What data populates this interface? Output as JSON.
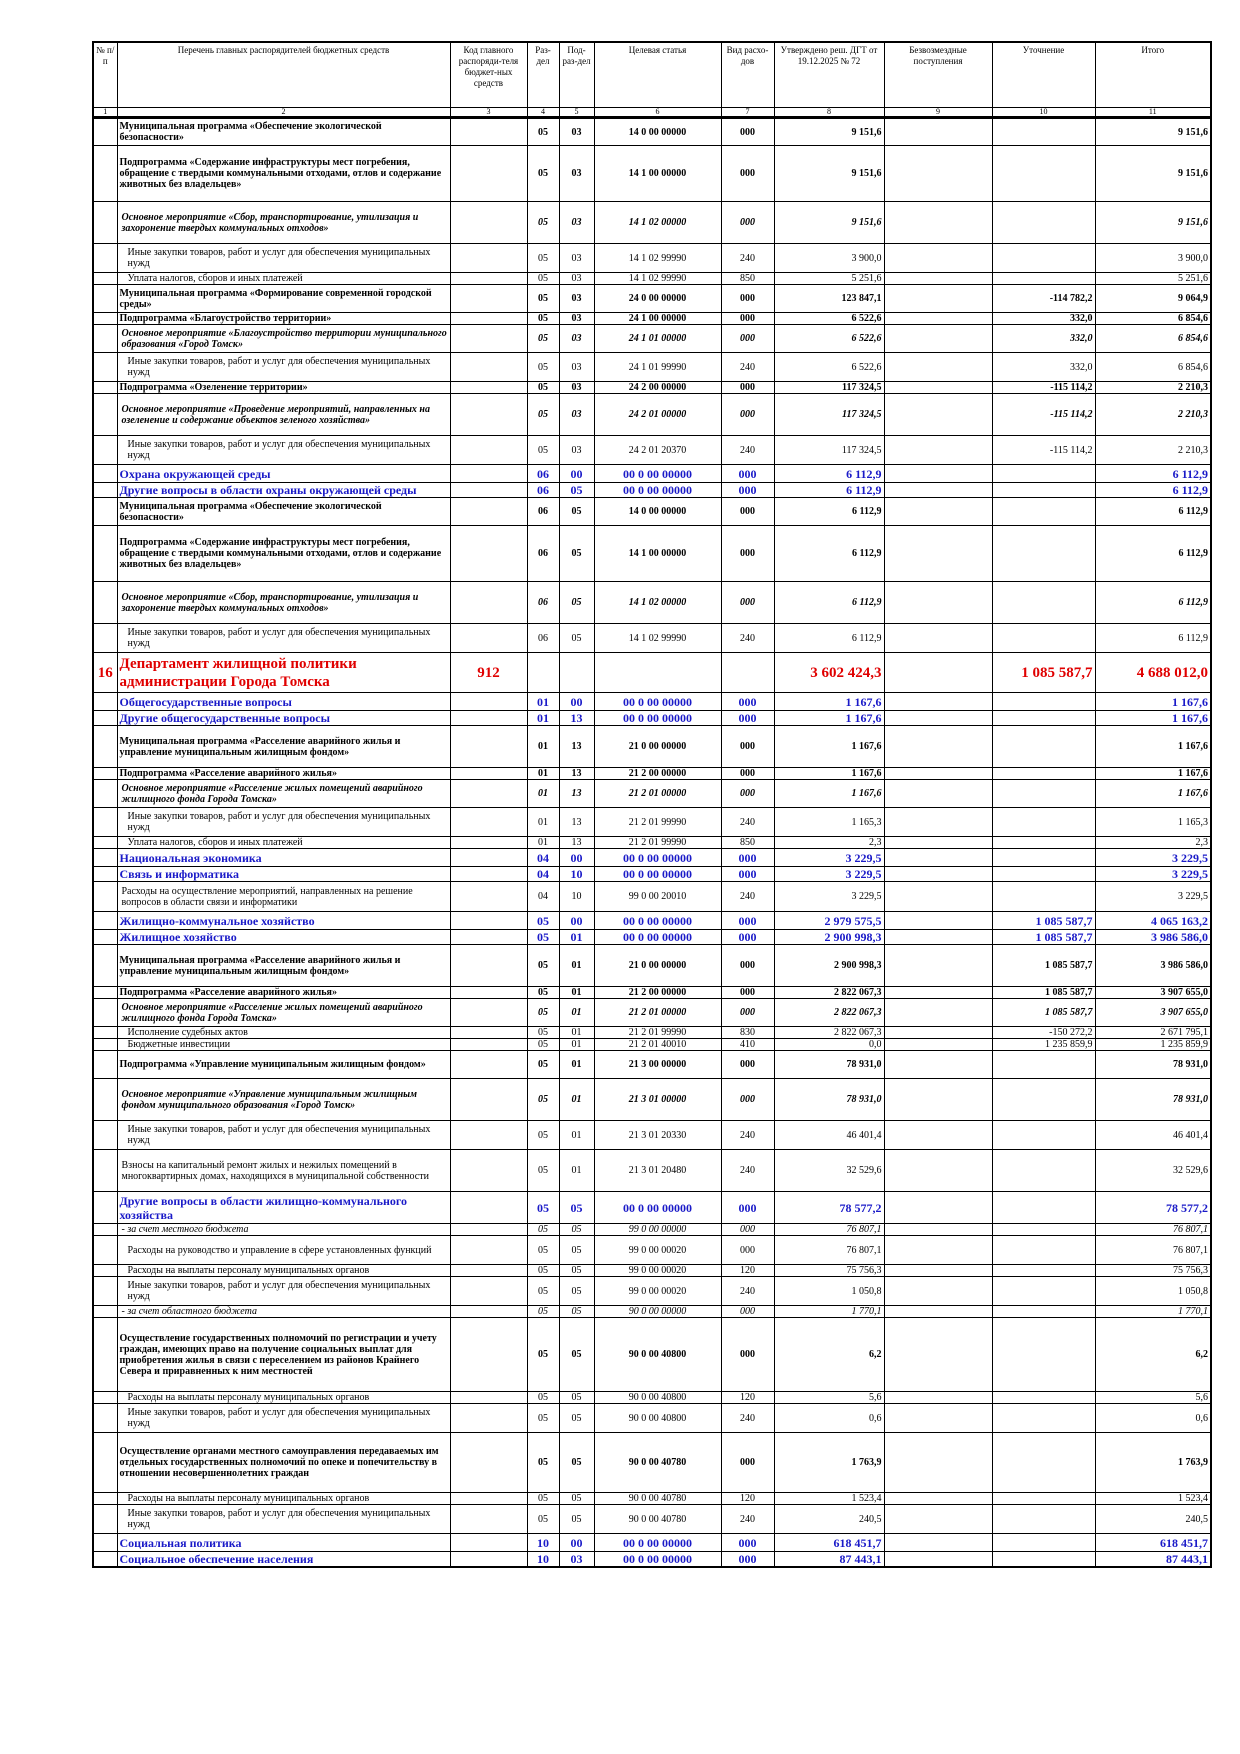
{
  "headers": [
    "№ п/п",
    "Перечень главных распорядителей бюджетных средств",
    "Код главного распоряди-теля бюджет-ных средств",
    "Раз-дел",
    "Под-раз-дел",
    "Целевая статья",
    "Вид расхо-дов",
    "Утверждено реш. ДГТ от 19.12.2025 № 72",
    "Безвозмездные поступления",
    "Уточнение",
    "Итого"
  ],
  "col_numbers": [
    "1",
    "2",
    "3",
    "4",
    "5",
    "6",
    "7",
    "8",
    "9",
    "10",
    "11"
  ],
  "rows": [
    {
      "style": "bold",
      "h": 28,
      "num": "",
      "name": "Муниципальная программа «Обеспечение экологической безопасности»",
      "code": "",
      "razdel": "05",
      "podrazdel": "03",
      "cs": "14 0 00 00000",
      "vr": "000",
      "approved": "9 151,6",
      "free": "",
      "refine": "",
      "total": "9 151,6"
    },
    {
      "style": "bold",
      "h": 56,
      "num": "",
      "name": "Подпрограмма «Содержание инфраструктуры мест погребения, обращение с твердыми коммунальными отходами, отлов и содержание животных без владельцев»",
      "code": "",
      "razdel": "05",
      "podrazdel": "03",
      "cs": "14 1 00 00000",
      "vr": "000",
      "approved": "9 151,6",
      "free": "",
      "refine": "",
      "total": "9 151,6"
    },
    {
      "style": "bi",
      "h": 42,
      "num": "",
      "name": "Основное мероприятие «Сбор, транспортирование, утилизация и захоронение твердых коммунальных отходов»",
      "code": "",
      "razdel": "05",
      "podrazdel": "03",
      "cs": "14 1 02 00000",
      "vr": "000",
      "approved": "9 151,6",
      "free": "",
      "refine": "",
      "total": "9 151,6"
    },
    {
      "style": "ind",
      "h": 29,
      "num": "",
      "name": "Иные закупки товаров, работ и услуг для обеспечения муниципальных нужд",
      "code": "",
      "razdel": "05",
      "podrazdel": "03",
      "cs": "14 1 02 99990",
      "vr": "240",
      "approved": "3 900,0",
      "free": "",
      "refine": "",
      "total": "3 900,0"
    },
    {
      "style": "ind",
      "h": 12,
      "num": "",
      "name": "Уплата налогов, сборов и иных платежей",
      "code": "",
      "razdel": "05",
      "podrazdel": "03",
      "cs": "14 1 02 99990",
      "vr": "850",
      "approved": "5 251,6",
      "free": "",
      "refine": "",
      "total": "5 251,6"
    },
    {
      "style": "bold",
      "h": 28,
      "num": "",
      "name": "Муниципальная программа «Формирование современной городской среды»",
      "code": "",
      "razdel": "05",
      "podrazdel": "03",
      "cs": "24 0 00 00000",
      "vr": "000",
      "approved": "123 847,1",
      "free": "",
      "refine": "-114 782,2",
      "total": "9 064,9"
    },
    {
      "style": "bold",
      "h": 12,
      "num": "",
      "name": "Подпрограмма «Благоустройство территории»",
      "code": "",
      "razdel": "05",
      "podrazdel": "03",
      "cs": "24 1 00 00000",
      "vr": "000",
      "approved": "6 522,6",
      "free": "",
      "refine": "332,0",
      "total": "6 854,6"
    },
    {
      "style": "bi",
      "h": 28,
      "num": "",
      "name": "Основное мероприятие «Благоустройство территории муниципального образования «Город Томск»",
      "code": "",
      "razdel": "05",
      "podrazdel": "03",
      "cs": "24 1 01 00000",
      "vr": "000",
      "approved": "6 522,6",
      "free": "",
      "refine": "332,0",
      "total": "6 854,6"
    },
    {
      "style": "ind",
      "h": 29,
      "num": "",
      "name": "Иные закупки товаров, работ и услуг для обеспечения муниципальных нужд",
      "code": "",
      "razdel": "05",
      "podrazdel": "03",
      "cs": "24 1 01 99990",
      "vr": "240",
      "approved": "6 522,6",
      "free": "",
      "refine": "332,0",
      "total": "6 854,6"
    },
    {
      "style": "bold",
      "h": 12,
      "num": "",
      "name": "Подпрограмма «Озеленение территории»",
      "code": "",
      "razdel": "05",
      "podrazdel": "03",
      "cs": "24 2 00 00000",
      "vr": "000",
      "approved": "117 324,5",
      "free": "",
      "refine": "-115 114,2",
      "total": "2 210,3"
    },
    {
      "style": "bi",
      "h": 42,
      "num": "",
      "name": "Основное мероприятие «Проведение мероприятий, направленных на озеленение и содержание объектов зеленого хозяйства»",
      "code": "",
      "razdel": "05",
      "podrazdel": "03",
      "cs": "24 2 01 00000",
      "vr": "000",
      "approved": "117 324,5",
      "free": "",
      "refine": "-115 114,2",
      "total": "2 210,3"
    },
    {
      "style": "ind",
      "h": 29,
      "num": "",
      "name": "Иные закупки товаров, работ и услуг для обеспечения муниципальных нужд",
      "code": "",
      "razdel": "05",
      "podrazdel": "03",
      "cs": "24 2 01 20370",
      "vr": "240",
      "approved": "117 324,5",
      "free": "",
      "refine": "-115 114,2",
      "total": "2 210,3"
    },
    {
      "style": "blue",
      "h": 18,
      "num": "",
      "name": "Охрана окружающей среды",
      "code": "",
      "razdel": "06",
      "podrazdel": "00",
      "cs": "00 0 00 00000",
      "vr": "000",
      "approved": "6 112,9",
      "free": "",
      "refine": "",
      "total": "6 112,9"
    },
    {
      "style": "blue",
      "h": 14,
      "num": "",
      "name": "Другие вопросы в области охраны окружающей среды",
      "code": "",
      "razdel": "06",
      "podrazdel": "05",
      "cs": "00 0 00 00000",
      "vr": "000",
      "approved": "6 112,9",
      "free": "",
      "refine": "",
      "total": "6 112,9"
    },
    {
      "style": "bold",
      "h": 28,
      "num": "",
      "name": "Муниципальная программа «Обеспечение экологической безопасности»",
      "code": "",
      "razdel": "06",
      "podrazdel": "05",
      "cs": "14 0 00 00000",
      "vr": "000",
      "approved": "6 112,9",
      "free": "",
      "refine": "",
      "total": "6 112,9"
    },
    {
      "style": "bold",
      "h": 56,
      "num": "",
      "name": "Подпрограмма «Содержание инфраструктуры мест погребения, обращение с твердыми коммунальными отходами, отлов и содержание животных без владельцев»",
      "code": "",
      "razdel": "06",
      "podrazdel": "05",
      "cs": "14 1 00 00000",
      "vr": "000",
      "approved": "6 112,9",
      "free": "",
      "refine": "",
      "total": "6 112,9"
    },
    {
      "style": "bi",
      "h": 42,
      "num": "",
      "name": "Основное мероприятие «Сбор, транспортирование, утилизация и захоронение твердых коммунальных отходов»",
      "code": "",
      "razdel": "06",
      "podrazdel": "05",
      "cs": "14 1 02 00000",
      "vr": "000",
      "approved": "6 112,9",
      "free": "",
      "refine": "",
      "total": "6 112,9"
    },
    {
      "style": "ind",
      "h": 29,
      "num": "",
      "name": "Иные закупки товаров, работ и услуг для обеспечения муниципальных нужд",
      "code": "",
      "razdel": "06",
      "podrazdel": "05",
      "cs": "14 1 02 99990",
      "vr": "240",
      "approved": "6 112,9",
      "free": "",
      "refine": "",
      "total": "6 112,9"
    },
    {
      "style": "red",
      "h": 40,
      "num": "16",
      "name": "Департамент жилищной политики администрации Города Томска",
      "code": "912",
      "razdel": "",
      "podrazdel": "",
      "cs": "",
      "vr": "",
      "approved": "3 602 424,3",
      "free": "",
      "refine": "1 085 587,7",
      "total": "4 688 012,0"
    },
    {
      "style": "blue",
      "h": 18,
      "num": "",
      "name": "Общегосударственные вопросы",
      "code": "",
      "razdel": "01",
      "podrazdel": "00",
      "cs": "00 0 00 00000",
      "vr": "000",
      "approved": "1 167,6",
      "free": "",
      "refine": "",
      "total": "1 167,6"
    },
    {
      "style": "blue",
      "h": 14,
      "num": "",
      "name": "Другие общегосударственные вопросы",
      "code": "",
      "razdel": "01",
      "podrazdel": "13",
      "cs": "00 0 00 00000",
      "vr": "000",
      "approved": "1 167,6",
      "free": "",
      "refine": "",
      "total": "1 167,6"
    },
    {
      "style": "bold",
      "h": 42,
      "num": "",
      "name": "Муниципальная программа «Расселение аварийного жилья и управление муниципальным жилищным фондом»",
      "code": "",
      "razdel": "01",
      "podrazdel": "13",
      "cs": "21 0 00 00000",
      "vr": "000",
      "approved": "1 167,6",
      "free": "",
      "refine": "",
      "total": "1 167,6"
    },
    {
      "style": "bold",
      "h": 12,
      "num": "",
      "name": "Подпрограмма «Расселение аварийного жилья»",
      "code": "",
      "razdel": "01",
      "podrazdel": "13",
      "cs": "21 2 00 00000",
      "vr": "000",
      "approved": "1 167,6",
      "free": "",
      "refine": "",
      "total": "1 167,6"
    },
    {
      "style": "bi",
      "h": 28,
      "num": "",
      "name": "Основное мероприятие «Расселение жилых помещений аварийного жилищного фонда Города Томска»",
      "code": "",
      "razdel": "01",
      "podrazdel": "13",
      "cs": "21 2 01 00000",
      "vr": "000",
      "approved": "1 167,6",
      "free": "",
      "refine": "",
      "total": "1 167,6"
    },
    {
      "style": "ind",
      "h": 29,
      "num": "",
      "name": "Иные закупки товаров, работ и услуг для обеспечения муниципальных нужд",
      "code": "",
      "razdel": "01",
      "podrazdel": "13",
      "cs": "21 2 01 99990",
      "vr": "240",
      "approved": "1 165,3",
      "free": "",
      "refine": "",
      "total": "1 165,3"
    },
    {
      "style": "ind",
      "h": 12,
      "num": "",
      "name": "Уплата налогов, сборов и иных платежей",
      "code": "",
      "razdel": "01",
      "podrazdel": "13",
      "cs": "21 2 01 99990",
      "vr": "850",
      "approved": "2,3",
      "free": "",
      "refine": "",
      "total": "2,3"
    },
    {
      "style": "blue",
      "h": 18,
      "num": "",
      "name": "Национальная экономика",
      "code": "",
      "razdel": "04",
      "podrazdel": "00",
      "cs": "00 0 00 00000",
      "vr": "000",
      "approved": "3 229,5",
      "free": "",
      "refine": "",
      "total": "3 229,5"
    },
    {
      "style": "blue",
      "h": 14,
      "num": "",
      "name": "Связь и информатика",
      "code": "",
      "razdel": "04",
      "podrazdel": "10",
      "cs": "00 0 00 00000",
      "vr": "000",
      "approved": "3 229,5",
      "free": "",
      "refine": "",
      "total": "3 229,5"
    },
    {
      "style": "ind1",
      "h": 30,
      "num": "",
      "name": "Расходы на осуществление мероприятий, направленных на решение вопросов в области связи и информатики",
      "code": "",
      "razdel": "04",
      "podrazdel": "10",
      "cs": "99 0 00 20010",
      "vr": "240",
      "approved": "3 229,5",
      "free": "",
      "refine": "",
      "total": "3 229,5"
    },
    {
      "style": "blue",
      "h": 18,
      "num": "",
      "name": "Жилищно-коммунальное хозяйство",
      "code": "",
      "razdel": "05",
      "podrazdel": "00",
      "cs": "00 0 00 00000",
      "vr": "000",
      "approved": "2 979 575,5",
      "free": "",
      "refine": "1 085 587,7",
      "total": "4 065 163,2"
    },
    {
      "style": "blue",
      "h": 14,
      "num": "",
      "name": "Жилищное хозяйство",
      "code": "",
      "razdel": "05",
      "podrazdel": "01",
      "cs": "00 0 00 00000",
      "vr": "000",
      "approved": "2 900 998,3",
      "free": "",
      "refine": "1 085 587,7",
      "total": "3 986 586,0"
    },
    {
      "style": "bold",
      "h": 42,
      "num": "",
      "name": "Муниципальная программа «Расселение аварийного жилья и управление муниципальным жилищным фондом»",
      "code": "",
      "razdel": "05",
      "podrazdel": "01",
      "cs": "21 0 00 00000",
      "vr": "000",
      "approved": "2 900 998,3",
      "free": "",
      "refine": "1 085 587,7",
      "total": "3 986 586,0"
    },
    {
      "style": "bold",
      "h": 12,
      "num": "",
      "name": "Подпрограмма «Расселение аварийного жилья»",
      "code": "",
      "razdel": "05",
      "podrazdel": "01",
      "cs": "21 2 00 00000",
      "vr": "000",
      "approved": "2 822 067,3",
      "free": "",
      "refine": "1 085 587,7",
      "total": "3 907 655,0"
    },
    {
      "style": "bi",
      "h": 28,
      "num": "",
      "name": "Основное мероприятие «Расселение жилых помещений аварийного жилищного фонда Города Томска»",
      "code": "",
      "razdel": "05",
      "podrazdel": "01",
      "cs": "21 2 01 00000",
      "vr": "000",
      "approved": "2 822 067,3",
      "free": "",
      "refine": "1 085 587,7",
      "total": "3 907 655,0"
    },
    {
      "style": "ind",
      "h": 12,
      "num": "",
      "name": "Исполнение судебных актов",
      "code": "",
      "razdel": "05",
      "podrazdel": "01",
      "cs": "21 2 01 99990",
      "vr": "830",
      "approved": "2 822 067,3",
      "free": "",
      "refine": "-150 272,2",
      "total": "2 671 795,1"
    },
    {
      "style": "ind",
      "h": 12,
      "num": "",
      "name": "Бюджетные инвестиции",
      "code": "",
      "razdel": "05",
      "podrazdel": "01",
      "cs": "21 2 01 40010",
      "vr": "410",
      "approved": "0,0",
      "free": "",
      "refine": "1 235 859,9",
      "total": "1 235 859,9"
    },
    {
      "style": "bold",
      "h": 28,
      "num": "",
      "name": "Подпрограмма «Управление муниципальным жилищным фондом»",
      "code": "",
      "razdel": "05",
      "podrazdel": "01",
      "cs": "21 3 00 00000",
      "vr": "000",
      "approved": "78 931,0",
      "free": "",
      "refine": "",
      "total": "78 931,0"
    },
    {
      "style": "bi",
      "h": 42,
      "num": "",
      "name": "Основное мероприятие «Управление муниципальным жилищным фондом муниципального образования «Город Томск»",
      "code": "",
      "razdel": "05",
      "podrazdel": "01",
      "cs": "21 3 01 00000",
      "vr": "000",
      "approved": "78 931,0",
      "free": "",
      "refine": "",
      "total": "78 931,0"
    },
    {
      "style": "ind",
      "h": 29,
      "num": "",
      "name": "Иные закупки товаров, работ и услуг для обеспечения муниципальных нужд",
      "code": "",
      "razdel": "05",
      "podrazdel": "01",
      "cs": "21 3 01 20330",
      "vr": "240",
      "approved": "46 401,4",
      "free": "",
      "refine": "",
      "total": "46 401,4"
    },
    {
      "style": "plain",
      "h": 42,
      "num": "",
      "name": "Взносы на капитальный ремонт жилых и нежилых помещений в многоквартирных домах, находящихся в муниципальной собственности",
      "code": "",
      "razdel": "05",
      "podrazdel": "01",
      "cs": "21 3 01 20480",
      "vr": "240",
      "approved": "32 529,6",
      "free": "",
      "refine": "",
      "total": "32 529,6"
    },
    {
      "style": "blue",
      "h": 32,
      "num": "",
      "name": "Другие вопросы в области жилищно-коммунального хозяйства",
      "code": "",
      "razdel": "05",
      "podrazdel": "05",
      "cs": "00 0 00 00000",
      "vr": "000",
      "approved": "78 577,2",
      "free": "",
      "refine": "",
      "total": "78 577,2"
    },
    {
      "style": "it",
      "h": 12,
      "num": "",
      "name": "- за счет местного бюджета",
      "code": "",
      "razdel": "05",
      "podrazdel": "05",
      "cs": "99 0 00 00000",
      "vr": "000",
      "approved": "76 807,1",
      "free": "",
      "refine": "",
      "total": "76 807,1"
    },
    {
      "style": "ind",
      "h": 29,
      "num": "",
      "name": "Расходы на руководство и управление в сфере установленных функций",
      "code": "",
      "razdel": "05",
      "podrazdel": "05",
      "cs": "99 0 00 00020",
      "vr": "000",
      "approved": "76 807,1",
      "free": "",
      "refine": "",
      "total": "76 807,1"
    },
    {
      "style": "ind",
      "h": 12,
      "num": "",
      "name": "Расходы на выплаты персоналу муниципальных органов",
      "code": "",
      "razdel": "05",
      "podrazdel": "05",
      "cs": "99 0 00 00020",
      "vr": "120",
      "approved": "75 756,3",
      "free": "",
      "refine": "",
      "total": "75 756,3"
    },
    {
      "style": "ind",
      "h": 29,
      "num": "",
      "name": "Иные закупки товаров, работ и услуг для обеспечения муниципальных нужд",
      "code": "",
      "razdel": "05",
      "podrazdel": "05",
      "cs": "99 0 00 00020",
      "vr": "240",
      "approved": "1 050,8",
      "free": "",
      "refine": "",
      "total": "1 050,8"
    },
    {
      "style": "it",
      "h": 12,
      "num": "",
      "name": "- за счет областного бюджета",
      "code": "",
      "razdel": "05",
      "podrazdel": "05",
      "cs": "90 0 00 00000",
      "vr": "000",
      "approved": "1 770,1",
      "free": "",
      "refine": "",
      "total": "1 770,1"
    },
    {
      "style": "bold",
      "h": 74,
      "num": "",
      "name": "Осуществление государственных полномочий по регистрации и учету граждан, имеющих право на получение социальных выплат для приобретения жилья в связи с переселением из районов Крайнего Севера и приравненных к ним местностей",
      "code": "",
      "razdel": "05",
      "podrazdel": "05",
      "cs": "90 0 00 40800",
      "vr": "000",
      "approved": "6,2",
      "free": "",
      "refine": "",
      "total": "6,2"
    },
    {
      "style": "ind",
      "h": 12,
      "num": "",
      "name": "Расходы на выплаты персоналу муниципальных органов",
      "code": "",
      "razdel": "05",
      "podrazdel": "05",
      "cs": "90 0 00 40800",
      "vr": "120",
      "approved": "5,6",
      "free": "",
      "refine": "",
      "total": "5,6"
    },
    {
      "style": "ind",
      "h": 29,
      "num": "",
      "name": "Иные закупки товаров, работ и услуг для обеспечения муниципальных нужд",
      "code": "",
      "razdel": "05",
      "podrazdel": "05",
      "cs": "90 0 00 40800",
      "vr": "240",
      "approved": "0,6",
      "free": "",
      "refine": "",
      "total": "0,6"
    },
    {
      "style": "bold",
      "h": 60,
      "num": "",
      "name": "Осуществление органами местного самоуправления передаваемых им отдельных государственных полномочий по опеке и попечительству в отношении несовершеннолетних граждан",
      "code": "",
      "razdel": "05",
      "podrazdel": "05",
      "cs": "90 0 00 40780",
      "vr": "000",
      "approved": "1 763,9",
      "free": "",
      "refine": "",
      "total": "1 763,9"
    },
    {
      "style": "ind",
      "h": 12,
      "num": "",
      "name": "Расходы на выплаты персоналу муниципальных органов",
      "code": "",
      "razdel": "05",
      "podrazdel": "05",
      "cs": "90 0 00 40780",
      "vr": "120",
      "approved": "1 523,4",
      "free": "",
      "refine": "",
      "total": "1 523,4"
    },
    {
      "style": "ind",
      "h": 29,
      "num": "",
      "name": "Иные закупки товаров, работ и услуг для обеспечения муниципальных нужд",
      "code": "",
      "razdel": "05",
      "podrazdel": "05",
      "cs": "90 0 00 40780",
      "vr": "240",
      "approved": "240,5",
      "free": "",
      "refine": "",
      "total": "240,5"
    },
    {
      "style": "blue",
      "h": 18,
      "num": "",
      "name": "Социальная политика",
      "code": "",
      "razdel": "10",
      "podrazdel": "00",
      "cs": "00 0 00 00000",
      "vr": "000",
      "approved": "618 451,7",
      "free": "",
      "refine": "",
      "total": "618 451,7"
    },
    {
      "style": "blue",
      "h": 14,
      "num": "",
      "name": "Социальное обеспечение населения",
      "code": "",
      "razdel": "10",
      "podrazdel": "03",
      "cs": "00 0 00 00000",
      "vr": "000",
      "approved": "87 443,1",
      "free": "",
      "refine": "",
      "total": "87 443,1"
    }
  ]
}
